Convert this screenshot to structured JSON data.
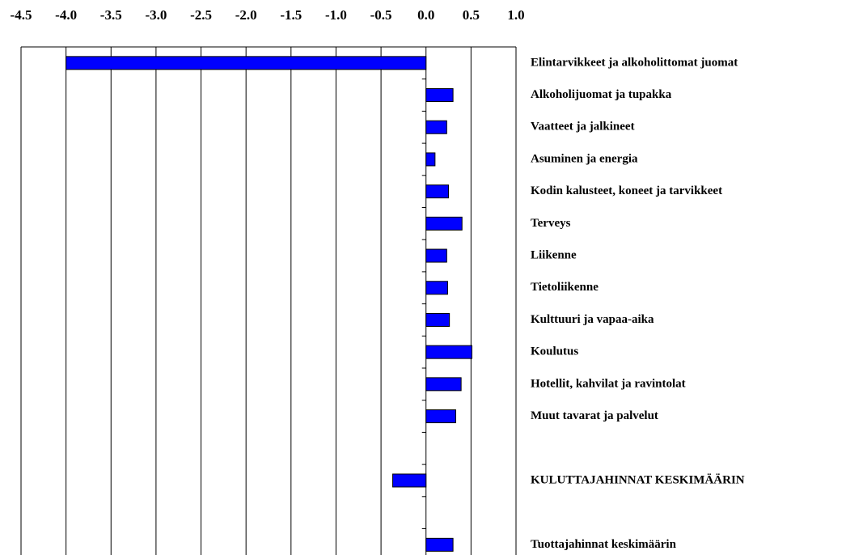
{
  "chart_data": {
    "type": "hbar",
    "categories": [
      "Elintarvikkeet ja alkoholittomat juomat",
      "Alkoholijuomat ja tupakka",
      "Vaatteet ja jalkineet",
      "Asuminen ja energia",
      "Kodin kalusteet, koneet ja tarvikkeet",
      "Terveys",
      "Liikenne",
      "Tietoliikenne",
      "Kulttuuri ja vapaa-aika",
      "Koulutus",
      "Hotellit, kahvilat ja ravintolat",
      "Muut tavarat ja palvelut",
      null,
      "KULUTTAJAHINNAT KESKIMÄÄRIN",
      null,
      "Tuottajahinnat keskimäärin"
    ],
    "values": [
      -4.0,
      0.3,
      0.23,
      0.1,
      0.25,
      0.4,
      0.23,
      0.24,
      0.26,
      0.51,
      0.39,
      0.33,
      null,
      -0.37,
      null,
      0.3
    ],
    "color": "#0000ff",
    "xlim": [
      -4.5,
      1.0
    ],
    "xticks": [
      -4.5,
      {
        "value": -4.0,
        "label": "-4.0"
      },
      -3.5,
      {
        "value": -3.0,
        "label": "-3.0"
      },
      -2.5,
      {
        "value": -2.0,
        "label": "-2.0"
      },
      -1.5,
      {
        "value": -1.0,
        "label": "-1.0"
      },
      -0.5,
      {
        "value": 0.0,
        "label": "0.0"
      },
      0.5,
      {
        "value": 1.0,
        "label": "1.0"
      }
    ],
    "grid": true
  }
}
